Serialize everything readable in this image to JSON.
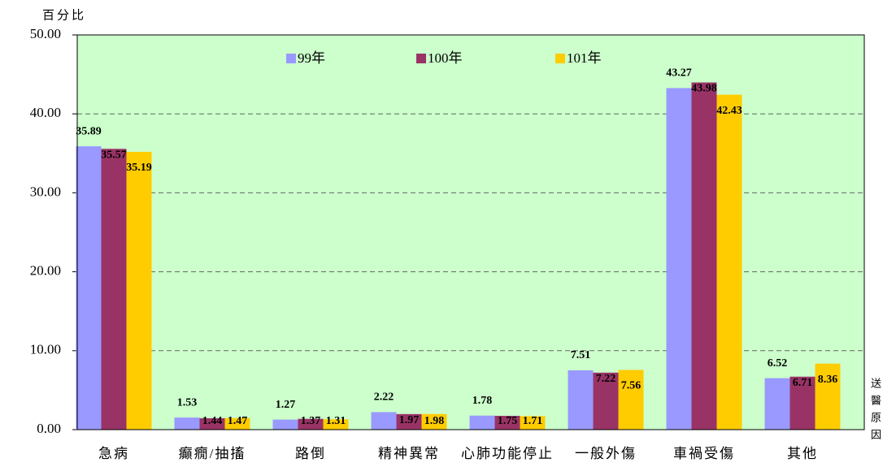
{
  "chart_data": {
    "type": "bar",
    "y_axis_label": "百分比",
    "x_axis_label": "送醫原因",
    "categories": [
      "急病",
      "癲癇/抽搐",
      "路倒",
      "精神異常",
      "心肺功能停止",
      "一般外傷",
      "車禍受傷",
      "其他"
    ],
    "series": [
      {
        "name": "99年",
        "color": "#9999ff",
        "values": [
          35.89,
          1.53,
          1.27,
          2.22,
          1.78,
          7.51,
          43.27,
          6.52
        ]
      },
      {
        "name": "100年",
        "color": "#993366",
        "values": [
          35.57,
          1.44,
          1.37,
          1.97,
          1.75,
          7.22,
          43.98,
          6.71
        ]
      },
      {
        "name": "101年",
        "color": "#ffcc00",
        "values": [
          35.19,
          1.47,
          1.31,
          1.98,
          1.71,
          7.56,
          42.43,
          8.36
        ]
      }
    ],
    "ylim": [
      0,
      50
    ],
    "yticks": [
      {
        "value": 0,
        "label": "0.00"
      },
      {
        "value": 10,
        "label": "10.00"
      },
      {
        "value": 20,
        "label": "20.00"
      },
      {
        "value": 30,
        "label": "30.00"
      },
      {
        "value": 40,
        "label": "40.00"
      },
      {
        "value": 50,
        "label": "50.00"
      }
    ],
    "grid": true,
    "legend": "top"
  }
}
